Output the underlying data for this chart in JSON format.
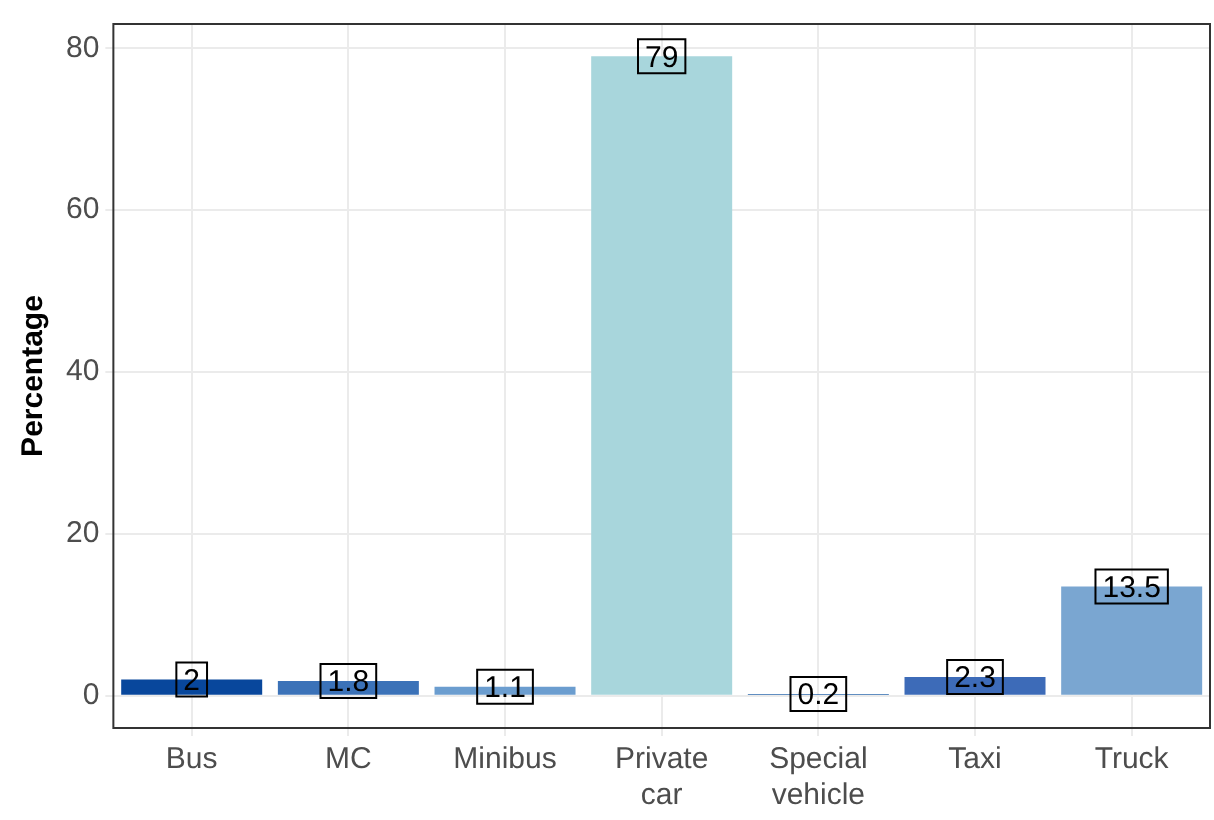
{
  "chart_data": {
    "type": "bar",
    "ylabel": "Percentage",
    "categories": [
      "Bus",
      "MC",
      "Minibus",
      "Private car",
      "Special vehicle",
      "Taxi",
      "Truck"
    ],
    "values": [
      2,
      1.8,
      1.1,
      79,
      0.2,
      2.3,
      13.5
    ],
    "colors": [
      "#08479c",
      "#3b72b8",
      "#6b9dcf",
      "#a8d6dc",
      "#2c68ad",
      "#3d6bb8",
      "#7aa6d1"
    ],
    "ylim": [
      -4,
      83
    ],
    "yticks": [
      0,
      20,
      40,
      60,
      80
    ],
    "grid": true,
    "data_labels": true,
    "legend": false
  }
}
